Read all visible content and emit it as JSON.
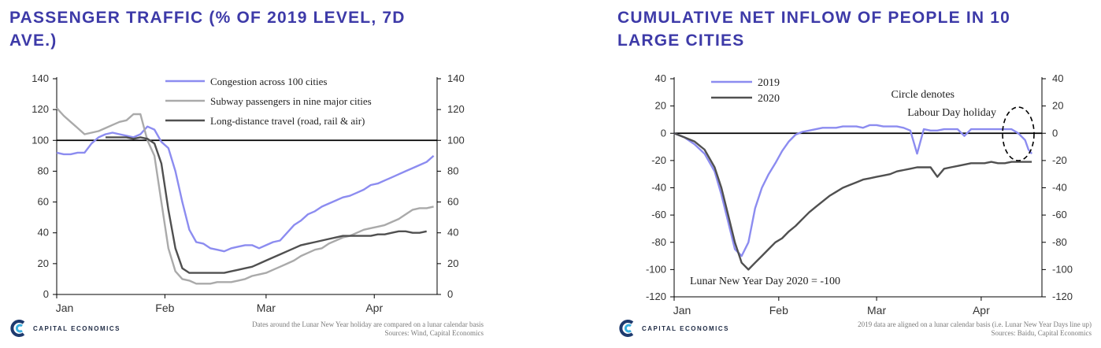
{
  "colors": {
    "title": "#3d3aa8",
    "blue": "#8c8cf0",
    "gray": "#aaaaaa",
    "dark": "#505050",
    "axis": "#000000"
  },
  "left": {
    "title_line1": "PASSENGER TRAFFIC (% OF 2019 LEVEL, 7D",
    "title_line2": "AVE.)",
    "logo_text": "CAPITAL ECONOMICS",
    "note_line1": "Dates around the Lunar New Year holiday are compared on a lunar calendar basis",
    "note_line2": "Sources: Wind, Capital Economics"
  },
  "right": {
    "title_line1": "CUMULATIVE NET INFLOW OF PEOPLE IN 10",
    "title_line2": "LARGE CITIES",
    "logo_text": "CAPITAL ECONOMICS",
    "note_line1": "2019 data are aligned on a lunar calendar basis (i.e. Lunar New Year Days line up)",
    "note_line2": "Sources: Baidu, Capital Economics"
  },
  "chart_data": [
    {
      "type": "line",
      "title": "PASSENGER TRAFFIC (% OF 2019 LEVEL, 7D AVE.)",
      "x_ticks": [
        "Jan",
        "Feb",
        "Mar",
        "Apr"
      ],
      "y_ticks": [
        0,
        20,
        40,
        60,
        80,
        100,
        120,
        140
      ],
      "ylim": [
        0,
        140
      ],
      "x_range_days": [
        0,
        109
      ],
      "reference_line": 100,
      "legend_position": "top-right",
      "series": [
        {
          "name": "Congestion across 100 cities",
          "color": "#8c8cf0",
          "x": [
            0,
            2,
            4,
            6,
            8,
            10,
            12,
            14,
            16,
            18,
            20,
            22,
            24,
            26,
            28,
            30,
            32,
            34,
            36,
            38,
            40,
            42,
            44,
            46,
            48,
            50,
            52,
            54,
            56,
            58,
            60,
            62,
            64,
            66,
            68,
            70,
            72,
            74,
            76,
            78,
            80,
            82,
            84,
            86,
            88,
            90,
            92,
            94,
            96,
            98,
            100,
            102,
            104,
            106,
            108
          ],
          "y": [
            92,
            91,
            91,
            92,
            92,
            98,
            102,
            104,
            105,
            104,
            103,
            102,
            104,
            109,
            107,
            99,
            95,
            80,
            60,
            42,
            34,
            33,
            30,
            29,
            28,
            30,
            31,
            32,
            32,
            30,
            32,
            34,
            35,
            40,
            45,
            48,
            52,
            54,
            57,
            59,
            61,
            63,
            64,
            66,
            68,
            71,
            72,
            74,
            76,
            78,
            80,
            82,
            84,
            86,
            90
          ]
        },
        {
          "name": "Subway passengers in nine major cities",
          "color": "#aaaaaa",
          "x": [
            0,
            2,
            4,
            6,
            8,
            10,
            12,
            14,
            16,
            18,
            20,
            22,
            24,
            26,
            28,
            30,
            32,
            34,
            36,
            38,
            40,
            42,
            44,
            46,
            48,
            50,
            52,
            54,
            56,
            58,
            60,
            62,
            64,
            66,
            68,
            70,
            72,
            74,
            76,
            78,
            80,
            82,
            84,
            86,
            88,
            90,
            92,
            94,
            96,
            98,
            100,
            102,
            104,
            106,
            108
          ],
          "y": [
            121,
            116,
            112,
            108,
            104,
            105,
            106,
            108,
            110,
            112,
            113,
            117,
            117,
            100,
            90,
            60,
            30,
            15,
            10,
            9,
            7,
            7,
            7,
            8,
            8,
            8,
            9,
            10,
            12,
            13,
            14,
            16,
            18,
            20,
            22,
            25,
            27,
            29,
            30,
            33,
            35,
            37,
            38,
            40,
            42,
            43,
            44,
            45,
            47,
            49,
            52,
            55,
            56,
            56,
            57
          ]
        },
        {
          "name": "Long-distance travel (road, rail & air)",
          "color": "#505050",
          "x": [
            14,
            16,
            18,
            20,
            22,
            24,
            26,
            28,
            30,
            32,
            34,
            36,
            38,
            40,
            42,
            44,
            46,
            48,
            50,
            52,
            54,
            56,
            58,
            60,
            62,
            64,
            66,
            68,
            70,
            72,
            74,
            76,
            78,
            80,
            82,
            84,
            86,
            88,
            90,
            92,
            94,
            96,
            98,
            100,
            102,
            104,
            106
          ],
          "y": [
            102,
            102,
            102,
            102,
            101,
            102,
            101,
            98,
            85,
            55,
            30,
            17,
            14,
            14,
            14,
            14,
            14,
            14,
            15,
            16,
            17,
            18,
            20,
            22,
            24,
            26,
            28,
            30,
            32,
            33,
            34,
            35,
            36,
            37,
            38,
            38,
            38,
            38,
            38,
            39,
            39,
            40,
            41,
            41,
            40,
            40,
            41
          ]
        }
      ]
    },
    {
      "type": "line",
      "title": "CUMULATIVE NET INFLOW OF PEOPLE IN 10 LARGE CITIES",
      "x_ticks": [
        "Jan",
        "Feb",
        "Mar",
        "Apr"
      ],
      "y_ticks": [
        -120,
        -100,
        -80,
        -60,
        -40,
        -20,
        0,
        20,
        40
      ],
      "ylim": [
        -120,
        40
      ],
      "x_range_days": [
        0,
        109
      ],
      "reference_line": 0,
      "legend_position": "top-left",
      "series": [
        {
          "name": "2019",
          "color": "#8c8cf0",
          "x": [
            0,
            3,
            6,
            9,
            12,
            14,
            16,
            18,
            20,
            22,
            24,
            26,
            28,
            30,
            32,
            34,
            36,
            38,
            40,
            42,
            44,
            46,
            48,
            50,
            52,
            54,
            56,
            58,
            60,
            62,
            64,
            66,
            68,
            70,
            72,
            74,
            76,
            78,
            80,
            82,
            84,
            86,
            88,
            90,
            92,
            94,
            96,
            98,
            100,
            102,
            104,
            105,
            106
          ],
          "y": [
            0,
            -3,
            -8,
            -15,
            -28,
            -45,
            -65,
            -85,
            -90,
            -80,
            -55,
            -40,
            -30,
            -22,
            -13,
            -6,
            -1,
            1,
            2,
            3,
            4,
            4,
            4,
            5,
            5,
            5,
            4,
            6,
            6,
            5,
            5,
            5,
            4,
            2,
            -15,
            3,
            2,
            2,
            3,
            3,
            3,
            -2,
            3,
            3,
            3,
            3,
            3,
            3,
            3,
            0,
            -5,
            -12,
            -15
          ]
        },
        {
          "name": "2020",
          "color": "#505050",
          "x": [
            0,
            3,
            6,
            9,
            12,
            14,
            16,
            18,
            20,
            22,
            24,
            26,
            28,
            30,
            32,
            34,
            36,
            38,
            40,
            42,
            44,
            46,
            48,
            50,
            52,
            54,
            56,
            58,
            60,
            62,
            64,
            66,
            68,
            70,
            72,
            74,
            76,
            78,
            80,
            82,
            84,
            86,
            88,
            90,
            92,
            94,
            96,
            98,
            100,
            102,
            104,
            106
          ],
          "y": [
            0,
            -3,
            -6,
            -12,
            -25,
            -40,
            -60,
            -80,
            -95,
            -100,
            -95,
            -90,
            -85,
            -80,
            -77,
            -72,
            -68,
            -63,
            -58,
            -54,
            -50,
            -46,
            -43,
            -40,
            -38,
            -36,
            -34,
            -33,
            -32,
            -31,
            -30,
            -28,
            -27,
            -26,
            -25,
            -25,
            -25,
            -32,
            -26,
            -25,
            -24,
            -23,
            -22,
            -22,
            -22,
            -21,
            -22,
            -22,
            -21,
            -21,
            -21,
            -21
          ]
        }
      ],
      "annotations": [
        {
          "text": "Circle denotes"
        },
        {
          "text": "Labour Day holiday"
        },
        {
          "text": "Lunar New Year Day 2020 = -100"
        }
      ]
    }
  ]
}
